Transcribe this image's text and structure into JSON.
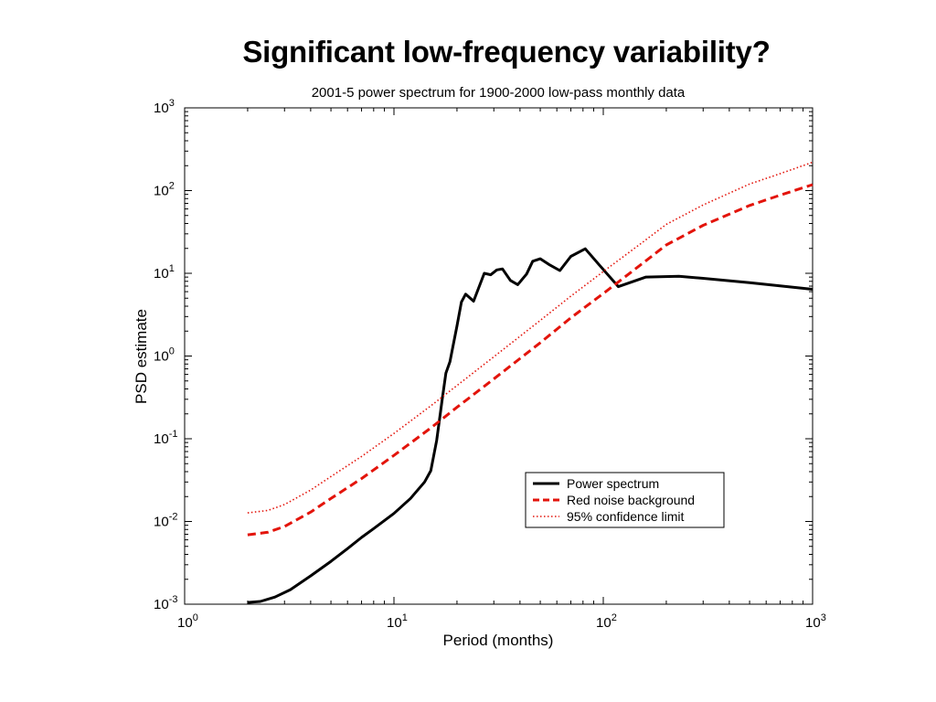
{
  "slide": {
    "title": "Significant low-frequency variability?"
  },
  "chart_data": {
    "type": "line",
    "title": "2001-5 power spectrum for 1900-2000 low-pass monthly data",
    "xlabel": "Period (months)",
    "ylabel": "PSD estimate",
    "xscale": "log",
    "yscale": "log",
    "xlim": [
      1,
      1000
    ],
    "ylim": [
      0.001,
      1000
    ],
    "x_ticks": [
      {
        "base": "10",
        "exp": "0"
      },
      {
        "base": "10",
        "exp": "1"
      },
      {
        "base": "10",
        "exp": "2"
      },
      {
        "base": "10",
        "exp": "3"
      }
    ],
    "y_ticks": [
      {
        "base": "10",
        "exp": "-3"
      },
      {
        "base": "10",
        "exp": "-2"
      },
      {
        "base": "10",
        "exp": "-1"
      },
      {
        "base": "10",
        "exp": "0"
      },
      {
        "base": "10",
        "exp": "1"
      },
      {
        "base": "10",
        "exp": "2"
      },
      {
        "base": "10",
        "exp": "3"
      }
    ],
    "grid": false,
    "legend_position": "lower-right",
    "series": [
      {
        "name": "Power spectrum",
        "color": "#000000",
        "style": "solid",
        "points": [
          [
            2,
            0.00105
          ],
          [
            2.3,
            0.00108
          ],
          [
            2.7,
            0.00122
          ],
          [
            3.2,
            0.0015
          ],
          [
            4,
            0.0022
          ],
          [
            5,
            0.0033
          ],
          [
            6,
            0.0047
          ],
          [
            7,
            0.0064
          ],
          [
            8,
            0.0082
          ],
          [
            10,
            0.0125
          ],
          [
            12,
            0.019
          ],
          [
            14,
            0.03
          ],
          [
            15,
            0.041
          ],
          [
            16,
            0.095
          ],
          [
            17,
            0.3
          ],
          [
            17.7,
            0.62
          ],
          [
            18.5,
            0.85
          ],
          [
            20,
            2.3
          ],
          [
            21,
            4.5
          ],
          [
            22,
            5.6
          ],
          [
            24,
            4.6
          ],
          [
            27,
            10
          ],
          [
            29,
            9.6
          ],
          [
            31,
            11
          ],
          [
            33,
            11.3
          ],
          [
            36,
            8.2
          ],
          [
            39,
            7.3
          ],
          [
            43,
            9.8
          ],
          [
            46,
            14
          ],
          [
            50,
            15
          ],
          [
            55,
            12.8
          ],
          [
            62,
            10.8
          ],
          [
            70,
            16
          ],
          [
            82,
            19.8
          ],
          [
            96,
            12.5
          ],
          [
            118,
            6.9
          ],
          [
            160,
            9
          ],
          [
            230,
            9.2
          ],
          [
            300,
            8.7
          ],
          [
            500,
            7.7
          ],
          [
            1000,
            6.4
          ]
        ]
      },
      {
        "name": "Red noise background",
        "color": "#e3140b",
        "style": "dashed",
        "points": [
          [
            2,
            0.0069
          ],
          [
            2.5,
            0.0074
          ],
          [
            3,
            0.0087
          ],
          [
            4,
            0.013
          ],
          [
            5,
            0.019
          ],
          [
            7,
            0.033
          ],
          [
            10,
            0.063
          ],
          [
            15,
            0.135
          ],
          [
            20,
            0.24
          ],
          [
            30,
            0.53
          ],
          [
            50,
            1.45
          ],
          [
            70,
            2.9
          ],
          [
            100,
            5.7
          ],
          [
            150,
            12.5
          ],
          [
            200,
            22
          ],
          [
            300,
            38
          ],
          [
            500,
            66
          ],
          [
            700,
            88
          ],
          [
            1000,
            118
          ]
        ]
      },
      {
        "name": "95% confidence limit",
        "color": "#e3140b",
        "style": "dotted",
        "points": [
          [
            2,
            0.0127
          ],
          [
            2.5,
            0.0136
          ],
          [
            3,
            0.016
          ],
          [
            4,
            0.024
          ],
          [
            5,
            0.035
          ],
          [
            7,
            0.061
          ],
          [
            10,
            0.116
          ],
          [
            15,
            0.25
          ],
          [
            20,
            0.44
          ],
          [
            30,
            0.98
          ],
          [
            50,
            2.7
          ],
          [
            70,
            5.3
          ],
          [
            100,
            10.5
          ],
          [
            150,
            22.5
          ],
          [
            200,
            39
          ],
          [
            300,
            67
          ],
          [
            500,
            120
          ],
          [
            700,
            160
          ],
          [
            1000,
            220
          ]
        ]
      }
    ]
  }
}
